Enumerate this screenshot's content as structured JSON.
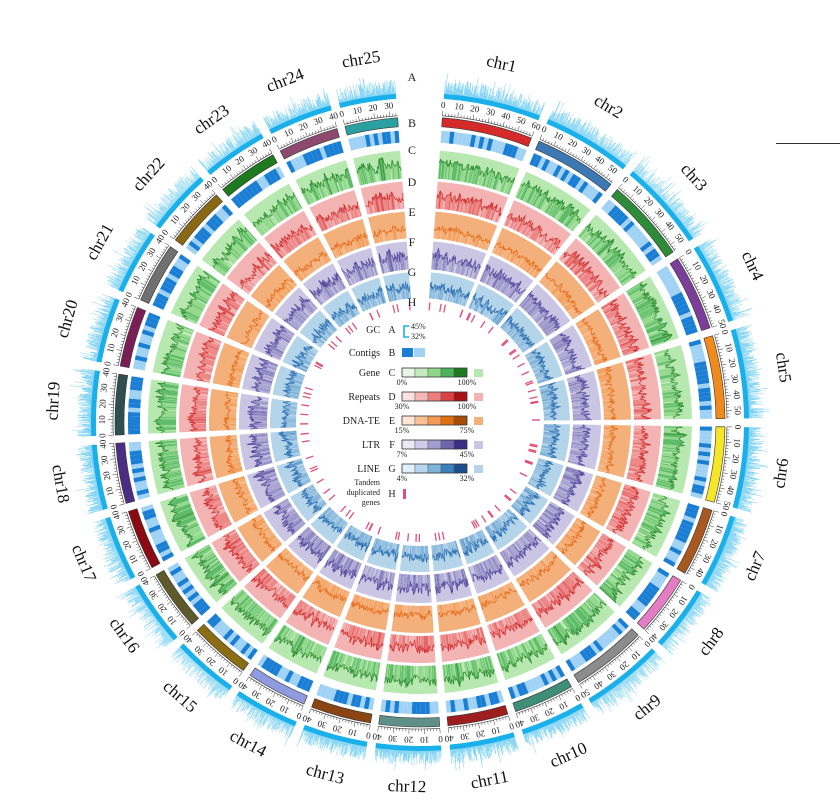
{
  "chart_data": {
    "type": "circos",
    "chromosomes": [
      {
        "name": "chr1",
        "length": 60,
        "color": "#d42a2a"
      },
      {
        "name": "chr2",
        "length": 55,
        "color": "#3b78b4"
      },
      {
        "name": "chr3",
        "length": 55,
        "color": "#2e8b3a"
      },
      {
        "name": "chr4",
        "length": 50,
        "color": "#7b3f99"
      },
      {
        "name": "chr5",
        "length": 55,
        "color": "#f08a1c"
      },
      {
        "name": "chr6",
        "length": 50,
        "color": "#f5e628"
      },
      {
        "name": "chr7",
        "length": 45,
        "color": "#a8591f"
      },
      {
        "name": "chr8",
        "length": 40,
        "color": "#e57dc4"
      },
      {
        "name": "chr9",
        "length": 50,
        "color": "#8c8c8c"
      },
      {
        "name": "chr10",
        "length": 40,
        "color": "#3f8f78"
      },
      {
        "name": "chr11",
        "length": 40,
        "color": "#9e1d1d"
      },
      {
        "name": "chr12",
        "length": 40,
        "color": "#5f8f86"
      },
      {
        "name": "chr13",
        "length": 40,
        "color": "#8b4513"
      },
      {
        "name": "chr14",
        "length": 40,
        "color": "#8e9be0"
      },
      {
        "name": "chr15",
        "length": 40,
        "color": "#8b6d14"
      },
      {
        "name": "chr16",
        "length": 40,
        "color": "#5e5a2b"
      },
      {
        "name": "chr17",
        "length": 40,
        "color": "#8b0a14"
      },
      {
        "name": "chr18",
        "length": 40,
        "color": "#4b2e83"
      },
      {
        "name": "chr19",
        "length": 40,
        "color": "#2f4f4f"
      },
      {
        "name": "chr20",
        "length": 40,
        "color": "#7a1f55"
      },
      {
        "name": "chr21",
        "length": 40,
        "color": "#707070"
      },
      {
        "name": "chr22",
        "length": 40,
        "color": "#8b6914"
      },
      {
        "name": "chr23",
        "length": 40,
        "color": "#1e7a1e"
      },
      {
        "name": "chr24",
        "length": 40,
        "color": "#8e4a6e"
      },
      {
        "name": "chr25",
        "length": 35,
        "color": "#2aa0a0"
      }
    ],
    "tick_step": 10,
    "track_letters": [
      "A",
      "B",
      "C",
      "D",
      "E",
      "F",
      "G",
      "H"
    ],
    "tracks": [
      {
        "letter": "A",
        "name": "GC",
        "color": "#1ab0ea",
        "range": [
          "32%",
          "45%"
        ]
      },
      {
        "letter": "B",
        "name": "Contigs",
        "color_a": "#1a7fd4",
        "color_b": "#9fd2f5"
      },
      {
        "letter": "C",
        "name": "Gene",
        "fill": "#b6e8b0",
        "line": "#1e7a1e",
        "range": [
          "0%",
          "100%"
        ]
      },
      {
        "letter": "D",
        "name": "Repeats",
        "fill": "#f3b3b3",
        "line": "#c91c1c",
        "range": [
          "30%",
          "100%"
        ]
      },
      {
        "letter": "E",
        "name": "DNA-TE",
        "fill": "#f4b07a",
        "line": "#e0630f",
        "range": [
          "15%",
          "75%"
        ]
      },
      {
        "letter": "F",
        "name": "LTR",
        "fill": "#c9c5e3",
        "line": "#4b3c94",
        "range": [
          "7%",
          "45%"
        ]
      },
      {
        "letter": "G",
        "name": "LINE",
        "fill": "#b4d4ea",
        "line": "#2166ac",
        "range": [
          "4%",
          "32%"
        ]
      },
      {
        "letter": "H",
        "name": "Tandem duplicated genes",
        "color": "#e0507a"
      }
    ],
    "legend": {
      "gc_label": "GC",
      "gc_letter": "A",
      "gc_high": "45%",
      "gc_low": "32%",
      "contigs_label": "Contigs",
      "contigs_letter": "B",
      "gene_label": "Gene",
      "gene_letter": "C",
      "gene_min": "0%",
      "gene_max": "100%",
      "repeats_label": "Repeats",
      "repeats_letter": "D",
      "repeats_min": "30%",
      "repeats_max": "100%",
      "dnate_label": "DNA-TE",
      "dnate_letter": "E",
      "dnate_min": "15%",
      "dnate_max": "75%",
      "ltr_label": "LTR",
      "ltr_letter": "F",
      "ltr_min": "7%",
      "ltr_max": "45%",
      "line_label": "LINE",
      "line_letter": "G",
      "line_min": "4%",
      "line_max": "32%",
      "tandem_label_1": "Tandem",
      "tandem_label_2": "duplicated",
      "tandem_label_3": "genes",
      "tandem_letter": "H"
    },
    "palettes": {
      "gene": [
        "#e8f7e5",
        "#c4ebbe",
        "#8fd68a",
        "#4db35a",
        "#1e7a1e"
      ],
      "repeats": [
        "#fbe1e1",
        "#f5b6b6",
        "#ec7e7e",
        "#dc4242",
        "#a81212"
      ],
      "dnate": [
        "#fde6d2",
        "#f9c193",
        "#f39a55",
        "#e0700f",
        "#a84d05"
      ],
      "ltr": [
        "#eceaf5",
        "#cfcbe6",
        "#a29ccd",
        "#6e63ad",
        "#3d2c86"
      ],
      "line": [
        "#e3eff8",
        "#b8d6ec",
        "#7fb3da",
        "#3b7fbd",
        "#1d4f8f"
      ]
    }
  }
}
